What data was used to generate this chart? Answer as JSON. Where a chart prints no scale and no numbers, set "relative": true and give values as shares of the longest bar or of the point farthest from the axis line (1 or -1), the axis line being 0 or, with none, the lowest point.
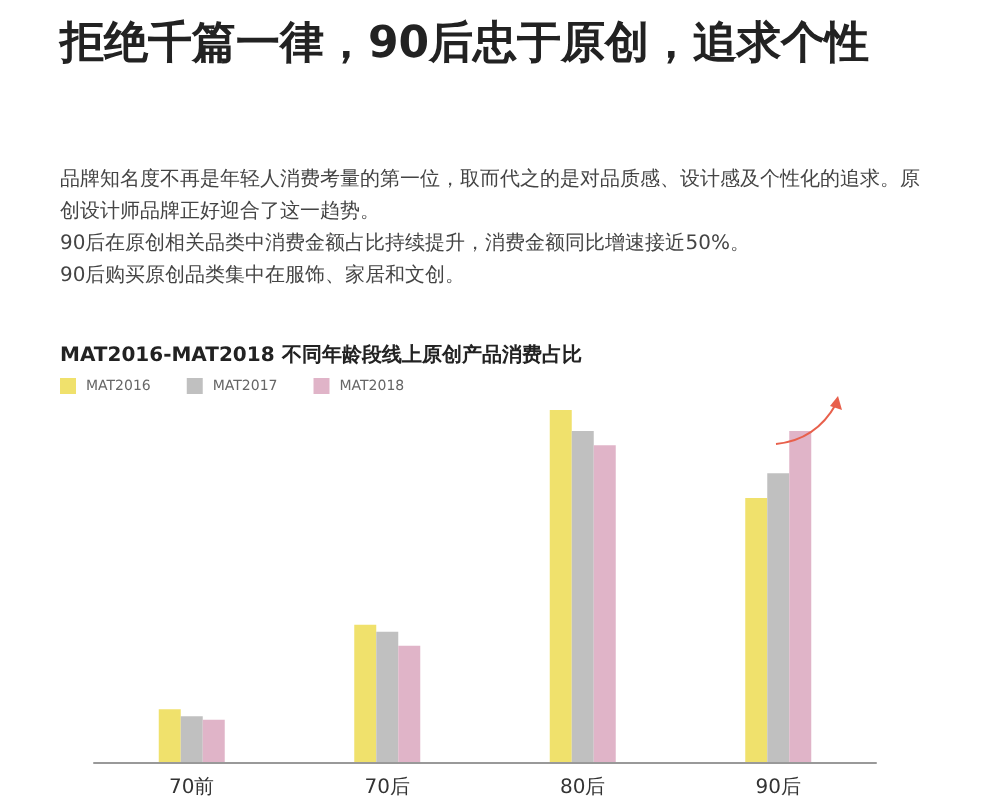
{
  "chart_data": {
    "type": "bar",
    "title": "拒绝千篇一律，90后忠于原创，追求个性",
    "subtitle": "MAT2016-MAT2018 不同年龄段线上原创产品消费占比",
    "annotations": [
      "品牌知名度不再是年轻人消费考量的第一位，取而代之的是对品质感、设计感及个性化的追求。原创设计师品牌正好迎合了这一趋势。",
      "90后在原创相关品类中消费金额占比持续提升，消费金额同比增速接近50%。",
      "90后购买原创品类集中在服饰、家居和文创。"
    ],
    "categories": [
      "70前",
      "70后",
      "80后",
      "90后"
    ],
    "relative": true,
    "series": [
      {
        "name": "MAT2016",
        "color": "#f0e16c",
        "values": [
          0.15,
          0.39,
          1,
          0.75
        ]
      },
      {
        "name": "MAT2017",
        "color": "#c0c0c0",
        "values": [
          0.13,
          0.37,
          0.94,
          0.82
        ]
      },
      {
        "name": "MAT2018",
        "color": "#e0b4c8",
        "values": [
          0.12,
          0.33,
          0.9,
          0.94
        ]
      }
    ],
    "legend": "top left"
  }
}
